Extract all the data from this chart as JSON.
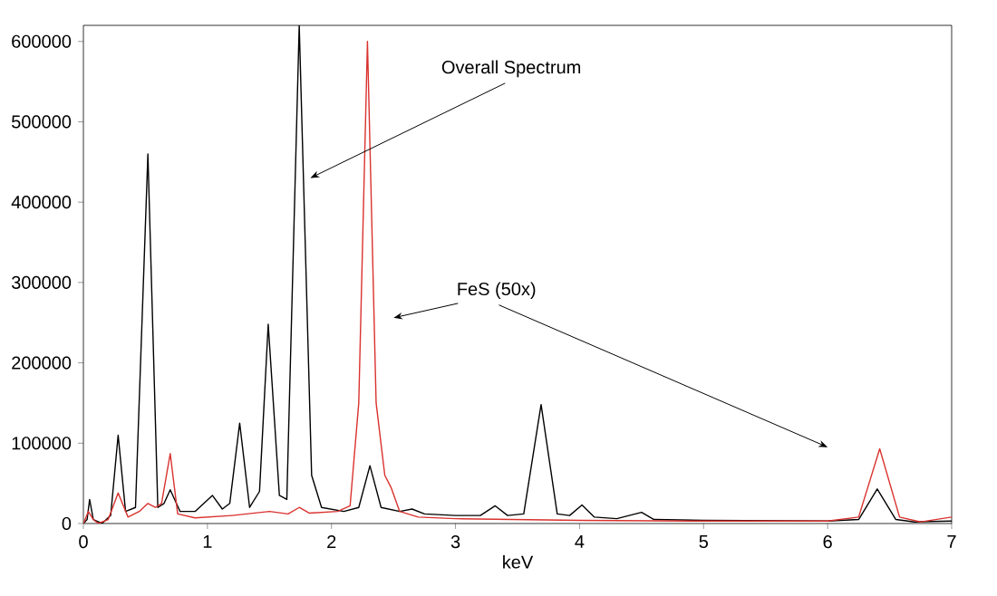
{
  "chart_data": {
    "type": "line",
    "xlabel": "keV",
    "xlim": [
      0,
      7
    ],
    "xticks": [
      0,
      1,
      2,
      3,
      4,
      5,
      6,
      7
    ],
    "ylim": [
      0,
      620000
    ],
    "yticks": [
      0,
      100000,
      200000,
      300000,
      400000,
      500000,
      600000
    ],
    "grid": false,
    "marker": "none",
    "line_style": "solid",
    "annotations": [
      "Overall Spectrum",
      "FeS (50x)"
    ],
    "series": [
      {
        "color": "#000000",
        "x": [
          0,
          0.03,
          0.05,
          0.08,
          0.15,
          0.22,
          0.28,
          0.34,
          0.42,
          0.52,
          0.6,
          0.65,
          0.7,
          0.78,
          0.9,
          1.04,
          1.12,
          1.18,
          1.26,
          1.34,
          1.42,
          1.49,
          1.58,
          1.64,
          1.74,
          1.84,
          1.92,
          2.1,
          2.22,
          2.31,
          2.4,
          2.55,
          2.65,
          2.75,
          3.0,
          3.2,
          3.32,
          3.42,
          3.55,
          3.69,
          3.82,
          3.92,
          4.02,
          4.12,
          4.3,
          4.5,
          4.6,
          5.0,
          6.0,
          6.25,
          6.4,
          6.55,
          6.7,
          7.0
        ],
        "values": [
          0,
          5000,
          30000,
          5000,
          0,
          10000,
          110000,
          15000,
          20000,
          460000,
          20000,
          25000,
          42000,
          15000,
          15000,
          35000,
          18000,
          25000,
          125000,
          20000,
          40000,
          248000,
          35000,
          30000,
          620000,
          60000,
          20000,
          15000,
          20000,
          72000,
          20000,
          15000,
          18000,
          12000,
          10000,
          10000,
          22000,
          10000,
          12000,
          148000,
          12000,
          10000,
          23000,
          8000,
          6000,
          14000,
          5000,
          4000,
          3000,
          5000,
          43000,
          5000,
          2000,
          3000
        ]
      },
      {
        "color": "#d9322e",
        "x": [
          0,
          0.04,
          0.08,
          0.12,
          0.2,
          0.28,
          0.36,
          0.45,
          0.52,
          0.58,
          0.63,
          0.7,
          0.76,
          0.9,
          1.2,
          1.5,
          1.65,
          1.74,
          1.82,
          2.05,
          2.15,
          2.22,
          2.29,
          2.36,
          2.43,
          2.48,
          2.55,
          2.7,
          3.0,
          3.5,
          4.0,
          5.0,
          6.0,
          6.25,
          6.42,
          6.58,
          6.75,
          7.0
        ],
        "values": [
          0,
          15000,
          5000,
          0,
          5000,
          38000,
          8000,
          15000,
          25000,
          20000,
          25000,
          87000,
          12000,
          7000,
          10000,
          15000,
          12000,
          20000,
          13000,
          15000,
          22000,
          150000,
          600000,
          150000,
          60000,
          45000,
          15000,
          8000,
          6000,
          5000,
          4000,
          3000,
          3000,
          8000,
          93000,
          8000,
          2000,
          8000
        ]
      }
    ]
  }
}
